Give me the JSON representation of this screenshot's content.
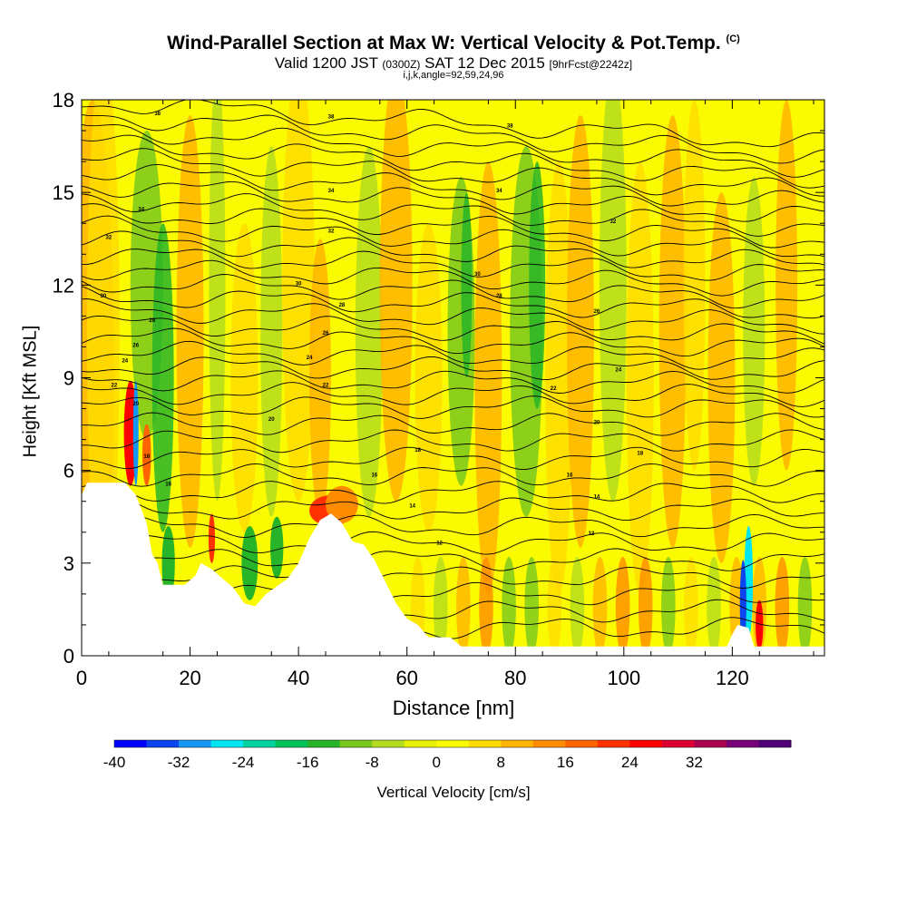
{
  "title": {
    "main": "Wind-Parallel Section at Max W: Vertical Velocity & Pot.Temp.",
    "copyright": "(C)",
    "valid_prefix": "Valid 1200 JST",
    "valid_utc": "(0300Z)",
    "valid_date": "SAT 12 Dec 2015",
    "forecast": "[9hrFcst@2242z]",
    "indices": "i,j,k,angle=92,59,24,96"
  },
  "chart_data": {
    "type": "heatmap",
    "xlabel": "Distance [nm]",
    "ylabel": "Height [Kft MSL]",
    "xlim": [
      0,
      137
    ],
    "ylim": [
      0,
      18
    ],
    "xticks": [
      0,
      20,
      40,
      60,
      80,
      100,
      120
    ],
    "yticks": [
      0,
      3,
      6,
      9,
      12,
      15,
      18
    ],
    "colorbar": {
      "label": "Vertical Velocity [cm/s]",
      "ticks": [
        -40,
        -32,
        -24,
        -16,
        -8,
        0,
        8,
        16,
        24,
        32
      ],
      "colors": [
        "#0000ff",
        "#0a45f0",
        "#1496f5",
        "#00e6f0",
        "#00d2a0",
        "#00c35a",
        "#28b428",
        "#78c81e",
        "#b4dc1e",
        "#e6f000",
        "#fafa00",
        "#ffdc00",
        "#ffb400",
        "#ff8c00",
        "#ff6400",
        "#ff3200",
        "#ff0000",
        "#dc0032",
        "#aa0050",
        "#780078",
        "#500078"
      ]
    },
    "terrain": [
      [
        0,
        5.2
      ],
      [
        1,
        5.6
      ],
      [
        8,
        5.6
      ],
      [
        10,
        5.2
      ],
      [
        12,
        4.3
      ],
      [
        13,
        3.3
      ],
      [
        14,
        3.0
      ],
      [
        15,
        2.3
      ],
      [
        19,
        2.3
      ],
      [
        21,
        2.6
      ],
      [
        22,
        3.0
      ],
      [
        24,
        2.8
      ],
      [
        26,
        2.5
      ],
      [
        28,
        2.2
      ],
      [
        30,
        1.7
      ],
      [
        32,
        1.6
      ],
      [
        34,
        2.0
      ],
      [
        38,
        2.5
      ],
      [
        40,
        3.0
      ],
      [
        42,
        3.8
      ],
      [
        44,
        4.4
      ],
      [
        46,
        4.6
      ],
      [
        48,
        4.3
      ],
      [
        50,
        3.7
      ],
      [
        52,
        3.6
      ],
      [
        54,
        3.1
      ],
      [
        56,
        2.4
      ],
      [
        58,
        1.7
      ],
      [
        60,
        1.2
      ],
      [
        62,
        1.0
      ],
      [
        64,
        0.6
      ],
      [
        68,
        0.6
      ],
      [
        70,
        0.3
      ],
      [
        119,
        0.3
      ],
      [
        120,
        0.7
      ],
      [
        121,
        1.0
      ],
      [
        123,
        0.9
      ],
      [
        124,
        0.3
      ],
      [
        137,
        0.3
      ]
    ],
    "contour_labels": [
      "38",
      "36",
      "34",
      "32",
      "30",
      "28",
      "26",
      "24",
      "22",
      "20",
      "18",
      "16",
      "14",
      "12",
      "10"
    ],
    "contour_label_samples": [
      {
        "x": 14,
        "y": 17.5,
        "t": "38"
      },
      {
        "x": 46,
        "y": 17.4,
        "t": "38"
      },
      {
        "x": 79,
        "y": 17.1,
        "t": "38"
      },
      {
        "x": 11,
        "y": 14.4,
        "t": "34"
      },
      {
        "x": 46,
        "y": 15.0,
        "t": "34"
      },
      {
        "x": 77,
        "y": 15.0,
        "t": "34"
      },
      {
        "x": 5,
        "y": 13.5,
        "t": "32"
      },
      {
        "x": 46,
        "y": 13.7,
        "t": "32"
      },
      {
        "x": 98,
        "y": 14.0,
        "t": "32"
      },
      {
        "x": 4,
        "y": 11.6,
        "t": "30"
      },
      {
        "x": 40,
        "y": 12.0,
        "t": "30"
      },
      {
        "x": 73,
        "y": 12.3,
        "t": "30"
      },
      {
        "x": 13,
        "y": 10.8,
        "t": "28"
      },
      {
        "x": 48,
        "y": 11.3,
        "t": "28"
      },
      {
        "x": 77,
        "y": 11.6,
        "t": "28"
      },
      {
        "x": 10,
        "y": 10.0,
        "t": "26"
      },
      {
        "x": 45,
        "y": 10.4,
        "t": "26"
      },
      {
        "x": 95,
        "y": 11.1,
        "t": "26"
      },
      {
        "x": 8,
        "y": 9.5,
        "t": "24"
      },
      {
        "x": 42,
        "y": 9.6,
        "t": "24"
      },
      {
        "x": 99,
        "y": 9.2,
        "t": "24"
      },
      {
        "x": 6,
        "y": 8.7,
        "t": "22"
      },
      {
        "x": 45,
        "y": 8.7,
        "t": "22"
      },
      {
        "x": 87,
        "y": 8.6,
        "t": "22"
      },
      {
        "x": 10,
        "y": 8.1,
        "t": "20"
      },
      {
        "x": 35,
        "y": 7.6,
        "t": "20"
      },
      {
        "x": 95,
        "y": 7.5,
        "t": "20"
      },
      {
        "x": 12,
        "y": 6.4,
        "t": "18"
      },
      {
        "x": 62,
        "y": 6.6,
        "t": "18"
      },
      {
        "x": 103,
        "y": 6.5,
        "t": "18"
      },
      {
        "x": 16,
        "y": 5.5,
        "t": "16"
      },
      {
        "x": 54,
        "y": 5.8,
        "t": "16"
      },
      {
        "x": 90,
        "y": 5.8,
        "t": "16"
      },
      {
        "x": 61,
        "y": 4.8,
        "t": "14"
      },
      {
        "x": 95,
        "y": 5.1,
        "t": "14"
      },
      {
        "x": 66,
        "y": 3.6,
        "t": "12"
      },
      {
        "x": 94,
        "y": 3.9,
        "t": "12"
      }
    ]
  }
}
